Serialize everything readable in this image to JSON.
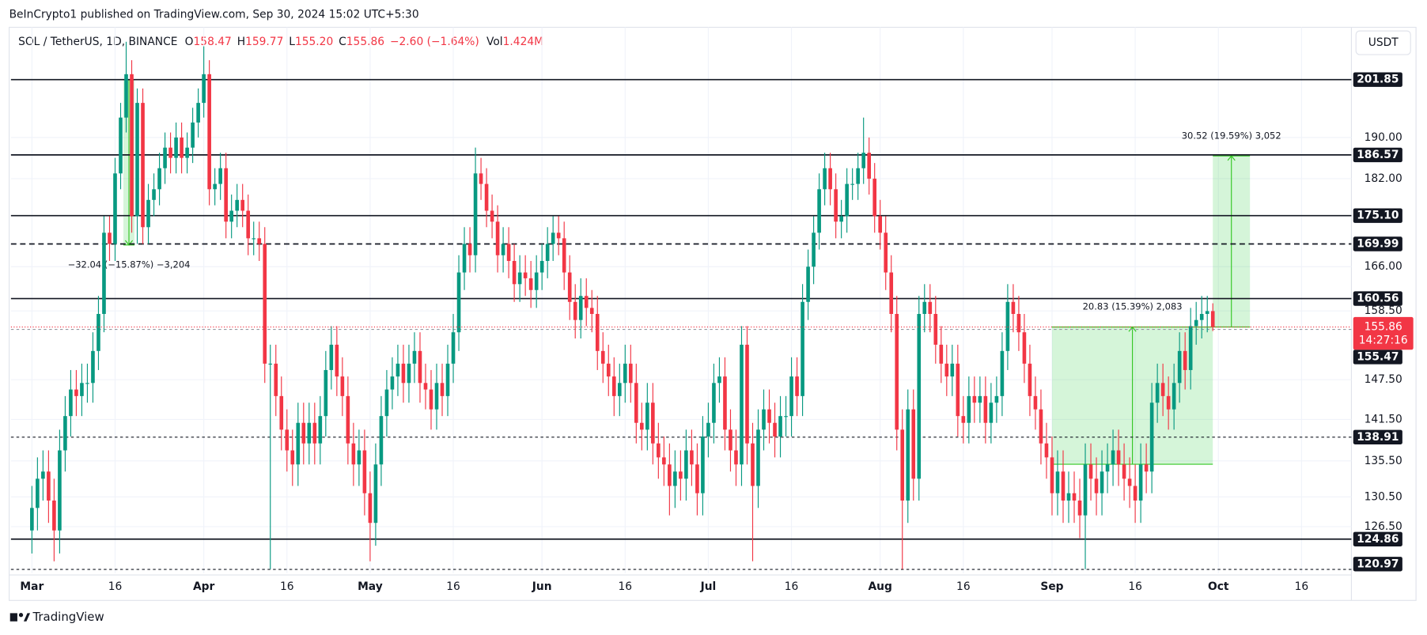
{
  "chart_data": {
    "type": "candlestick",
    "header": "BeInCrypto1 published on TradingView.com, Sep 30, 2024 15:02 UTC+5:30",
    "symbol": "SOL / TetherUS, 1D, BINANCE",
    "legend": [
      {
        "key": "O",
        "value": "158.47"
      },
      {
        "key": "H",
        "value": "159.77"
      },
      {
        "key": "L",
        "value": "155.20"
      },
      {
        "key": "C",
        "value": "155.86"
      }
    ],
    "change": "−2.60 (−1.64%)",
    "volume": {
      "key": "Vol",
      "value": "1.424M"
    },
    "currency": "USDT",
    "brand": "TradingView",
    "log_scale": true,
    "grid": true,
    "up_color": "#089981",
    "down_color": "#f23645",
    "xlim": [
      -3.78,
      238
    ],
    "xticks": [
      {
        "value": 0,
        "label": "Mar"
      },
      {
        "value": 15,
        "label": "16"
      },
      {
        "value": 31,
        "label": "Apr"
      },
      {
        "value": 46,
        "label": "16"
      },
      {
        "value": 61,
        "label": "May"
      },
      {
        "value": 76,
        "label": "16"
      },
      {
        "value": 92,
        "label": "Jun"
      },
      {
        "value": 107,
        "label": "16"
      },
      {
        "value": 122,
        "label": "Jul"
      },
      {
        "value": 137,
        "label": "16"
      },
      {
        "value": 153,
        "label": "Aug"
      },
      {
        "value": 168,
        "label": "16"
      },
      {
        "value": 184,
        "label": "Sep"
      },
      {
        "value": 199,
        "label": "16"
      },
      {
        "value": 214,
        "label": "Oct"
      },
      {
        "value": 229,
        "label": "16"
      }
    ],
    "ylim": [
      120.5,
      213.2
    ],
    "yticks": [
      {
        "value": 126.5,
        "label": "126.50"
      },
      {
        "value": 130.5,
        "label": "130.50"
      },
      {
        "value": 135.5,
        "label": "135.50"
      },
      {
        "value": 141.5,
        "label": "141.50"
      },
      {
        "value": 147.5,
        "label": "147.50"
      },
      {
        "value": 158.5,
        "label": "158.50"
      },
      {
        "value": 166,
        "label": "166.00"
      },
      {
        "value": 182,
        "label": "182.00"
      },
      {
        "value": 190,
        "label": "190.00"
      }
    ],
    "x": [
      0,
      1,
      2,
      3,
      4,
      5,
      6,
      7,
      8,
      9,
      10,
      11,
      12,
      13,
      14,
      15,
      16,
      17,
      18,
      19,
      20,
      21,
      22,
      23,
      24,
      25,
      26,
      27,
      28,
      29,
      30,
      31,
      32,
      33,
      34,
      35,
      36,
      37,
      38,
      39,
      40,
      41,
      42,
      43,
      44,
      45,
      46,
      47,
      48,
      49,
      50,
      51,
      52,
      53,
      54,
      55,
      56,
      57,
      58,
      59,
      60,
      61,
      62,
      63,
      64,
      65,
      66,
      67,
      68,
      69,
      70,
      71,
      72,
      73,
      74,
      75,
      76,
      77,
      78,
      79,
      80,
      81,
      82,
      83,
      84,
      85,
      86,
      87,
      88,
      89,
      90,
      91,
      92,
      93,
      94,
      95,
      96,
      97,
      98,
      99,
      100,
      101,
      102,
      103,
      104,
      105,
      106,
      107,
      108,
      109,
      110,
      111,
      112,
      113,
      114,
      115,
      116,
      117,
      118,
      119,
      120,
      121,
      122,
      123,
      124,
      125,
      126,
      127,
      128,
      129,
      130,
      131,
      132,
      133,
      134,
      135,
      136,
      137,
      138,
      139,
      140,
      141,
      142,
      143,
      144,
      145,
      146,
      147,
      148,
      149,
      150,
      151,
      152,
      153,
      154,
      155,
      156,
      157,
      158,
      159,
      160,
      161,
      162,
      163,
      164,
      165,
      166,
      167,
      168,
      169,
      170,
      171,
      172,
      173,
      174,
      175,
      176,
      177,
      178,
      179,
      180,
      181,
      182,
      183,
      184,
      185,
      186,
      187,
      188,
      189,
      190,
      191,
      192,
      193,
      194,
      195,
      196,
      197,
      198,
      199,
      200,
      201,
      202,
      203,
      204,
      205,
      206,
      207,
      208,
      209,
      210,
      211,
      212,
      213
    ],
    "open": [
      126,
      129,
      133,
      134,
      130,
      126,
      137,
      142,
      146,
      145,
      147,
      147,
      152,
      158,
      172,
      170,
      183,
      194,
      203,
      175,
      197,
      173,
      178,
      180,
      184,
      188,
      186,
      190,
      186,
      188,
      193,
      197,
      203,
      180,
      181,
      184,
      174,
      176,
      178,
      176,
      171,
      171,
      170,
      150,
      150,
      145,
      140,
      137,
      135,
      141,
      138,
      141,
      138,
      142,
      149,
      153,
      148,
      145,
      138,
      135,
      137,
      131,
      127,
      135,
      142,
      146,
      148,
      150,
      147,
      150,
      152,
      147,
      146,
      143,
      147,
      145,
      150,
      155,
      165,
      170,
      168,
      183,
      181,
      176,
      174,
      168,
      170,
      167,
      163,
      165,
      164,
      162,
      165,
      167,
      170,
      172,
      171,
      165,
      160,
      157,
      161,
      159,
      158,
      152,
      150,
      148,
      145,
      147,
      150,
      147,
      141,
      140,
      144,
      138,
      136,
      135,
      132,
      134,
      133,
      137,
      135,
      131,
      139,
      141,
      147,
      148,
      140,
      137,
      135,
      153,
      138,
      132,
      140,
      143,
      141,
      139,
      142,
      142,
      148,
      145,
      160,
      166,
      172,
      180,
      184,
      180,
      174,
      175,
      181,
      181,
      184,
      187,
      182,
      175,
      172,
      165,
      158,
      140,
      130,
      143,
      133,
      158,
      160,
      158,
      153,
      150,
      148,
      150,
      142,
      141,
      145,
      144,
      145,
      141,
      144,
      145,
      152,
      160,
      158,
      155,
      150,
      145,
      143,
      138,
      136,
      131,
      134,
      130,
      131,
      130,
      128,
      135,
      133,
      131,
      134,
      135,
      137,
      135,
      133,
      132,
      130,
      135,
      134,
      144,
      147,
      145,
      143,
      147,
      152,
      149,
      156,
      157,
      158,
      158.47
    ],
    "high": [
      132,
      136,
      137,
      137,
      133,
      140,
      145,
      149,
      149,
      150,
      150,
      155,
      161,
      175,
      175,
      186,
      197,
      210,
      206,
      200,
      200,
      181,
      183,
      187,
      191,
      191,
      193,
      193,
      191,
      196,
      200,
      209,
      206,
      184,
      187,
      187,
      179,
      181,
      181,
      179,
      174,
      174,
      173,
      153,
      153,
      148,
      143,
      140,
      144,
      144,
      144,
      144,
      145,
      152,
      156,
      156,
      151,
      148,
      141,
      140,
      140,
      134,
      138,
      145,
      149,
      151,
      153,
      153,
      153,
      155,
      155,
      150,
      149,
      150,
      150,
      153,
      158,
      168,
      173,
      173,
      188,
      186,
      184,
      179,
      177,
      173,
      173,
      170,
      168,
      168,
      167,
      168,
      170,
      173,
      175,
      175,
      174,
      168,
      163,
      164,
      164,
      162,
      161,
      155,
      153,
      151,
      150,
      153,
      153,
      150,
      144,
      147,
      147,
      141,
      139,
      138,
      137,
      137,
      140,
      140,
      138,
      142,
      144,
      150,
      151,
      151,
      143,
      140,
      156,
      156,
      141,
      143,
      146,
      146,
      144,
      145,
      145,
      151,
      151,
      163,
      169,
      175,
      183,
      187,
      187,
      183,
      178,
      184,
      184,
      187,
      194,
      190,
      185,
      178,
      175,
      168,
      161,
      143,
      146,
      146,
      161,
      163,
      163,
      161,
      156,
      153,
      153,
      153,
      145,
      148,
      148,
      148,
      148,
      147,
      148,
      155,
      163,
      163,
      161,
      158,
      153,
      148,
      146,
      141,
      139,
      137,
      137,
      134,
      134,
      133,
      138,
      138,
      136,
      137,
      138,
      140,
      140,
      138,
      136,
      135,
      138,
      138,
      147,
      150,
      150,
      148,
      150,
      155,
      155,
      159,
      160,
      161,
      161,
      159.77
    ],
    "low": [
      123,
      126,
      130,
      127,
      122,
      123,
      134,
      139,
      142,
      142,
      144,
      144,
      149,
      155,
      167,
      167,
      180,
      191,
      172,
      170,
      170,
      170,
      175,
      177,
      181,
      183,
      183,
      183,
      183,
      185,
      190,
      194,
      177,
      177,
      178,
      171,
      171,
      173,
      173,
      168,
      168,
      167,
      147,
      121,
      142,
      137,
      134,
      132,
      132,
      135,
      135,
      135,
      135,
      139,
      146,
      145,
      142,
      135,
      132,
      132,
      128,
      122,
      124,
      132,
      139,
      143,
      145,
      144,
      144,
      147,
      144,
      143,
      140,
      140,
      142,
      142,
      147,
      152,
      162,
      165,
      165,
      178,
      173,
      171,
      165,
      165,
      164,
      160,
      160,
      161,
      159,
      159,
      162,
      164,
      167,
      168,
      162,
      157,
      154,
      154,
      156,
      155,
      149,
      147,
      145,
      142,
      142,
      144,
      144,
      138,
      137,
      137,
      135,
      133,
      132,
      128,
      129,
      130,
      130,
      132,
      128,
      128,
      136,
      138,
      144,
      137,
      134,
      132,
      132,
      135,
      122,
      129,
      137,
      138,
      136,
      136,
      139,
      139,
      142,
      142,
      157,
      163,
      169,
      177,
      177,
      171,
      171,
      172,
      178,
      178,
      181,
      179,
      172,
      169,
      162,
      155,
      137,
      121,
      127,
      130,
      130,
      155,
      155,
      150,
      147,
      145,
      145,
      139,
      138,
      138,
      141,
      141,
      138,
      138,
      141,
      142,
      149,
      155,
      152,
      147,
      142,
      140,
      135,
      133,
      128,
      128,
      127,
      127,
      127,
      125,
      121,
      130,
      128,
      128,
      131,
      132,
      132,
      130,
      129,
      127,
      127,
      131,
      131,
      141,
      142,
      140,
      140,
      144,
      146,
      146,
      153,
      154,
      155,
      155.2
    ],
    "close": [
      129,
      133,
      134,
      130,
      126,
      137,
      142,
      146,
      145,
      147,
      147,
      152,
      158,
      172,
      170,
      183,
      194,
      203,
      175,
      197,
      173,
      178,
      180,
      184,
      188,
      186,
      190,
      186,
      188,
      193,
      197,
      203,
      180,
      181,
      184,
      174,
      176,
      178,
      176,
      171,
      171,
      170,
      150,
      150,
      145,
      140,
      137,
      135,
      141,
      138,
      141,
      138,
      142,
      149,
      153,
      148,
      145,
      138,
      135,
      137,
      131,
      127,
      135,
      142,
      146,
      148,
      150,
      147,
      150,
      152,
      147,
      146,
      143,
      147,
      145,
      150,
      155,
      165,
      170,
      168,
      183,
      181,
      176,
      174,
      168,
      170,
      167,
      163,
      165,
      164,
      162,
      165,
      167,
      170,
      172,
      171,
      165,
      160,
      157,
      161,
      159,
      158,
      152,
      150,
      148,
      145,
      147,
      150,
      147,
      141,
      140,
      144,
      138,
      136,
      135,
      132,
      134,
      133,
      137,
      135,
      131,
      139,
      141,
      147,
      148,
      140,
      137,
      135,
      153,
      138,
      132,
      140,
      143,
      141,
      139,
      142,
      142,
      148,
      145,
      160,
      166,
      172,
      180,
      184,
      180,
      174,
      175,
      181,
      181,
      184,
      187,
      182,
      175,
      172,
      165,
      158,
      140,
      130,
      143,
      133,
      158,
      160,
      158,
      153,
      150,
      148,
      150,
      142,
      141,
      145,
      144,
      145,
      141,
      144,
      145,
      152,
      160,
      158,
      155,
      150,
      145,
      143,
      138,
      136,
      131,
      134,
      130,
      131,
      130,
      128,
      135,
      133,
      131,
      134,
      135,
      137,
      135,
      133,
      132,
      130,
      135,
      134,
      144,
      147,
      145,
      143,
      147,
      152,
      149,
      156,
      157,
      158,
      158.47,
      155.86
    ],
    "levels": [
      {
        "price": 201.85,
        "style": "solid"
      },
      {
        "price": 186.57,
        "style": "solid"
      },
      {
        "price": {
          "value": 175.1,
          "label": "175.10"
        },
        "style": "solid"
      },
      {
        "price": 169.99,
        "style": "dashed"
      },
      {
        "price": 160.56,
        "style": "solid"
      },
      {
        "price": 155.47,
        "style": "dotted"
      },
      {
        "price": 138.91,
        "style": "dotted"
      },
      {
        "price": 124.86,
        "style": "solid"
      },
      {
        "price": 120.97,
        "style": "dotted"
      }
    ],
    "last_price": 155.86,
    "countdown": "14:27:16",
    "measures": [
      {
        "label": "−32.04 (−15.87%) −3,204",
        "from": 201.85,
        "to": 169.81,
        "x_start": 16.5,
        "x_end": 18.5
      },
      {
        "label": "20.83 (15.39%) 2,083",
        "from": 135.03,
        "to": 155.86,
        "x_start": 184,
        "x_end": 213
      },
      {
        "label": "30.52 (19.59%) 3,052",
        "from": 155.86,
        "to": 186.38,
        "x_start": 213,
        "x_end": 219.7
      }
    ]
  }
}
